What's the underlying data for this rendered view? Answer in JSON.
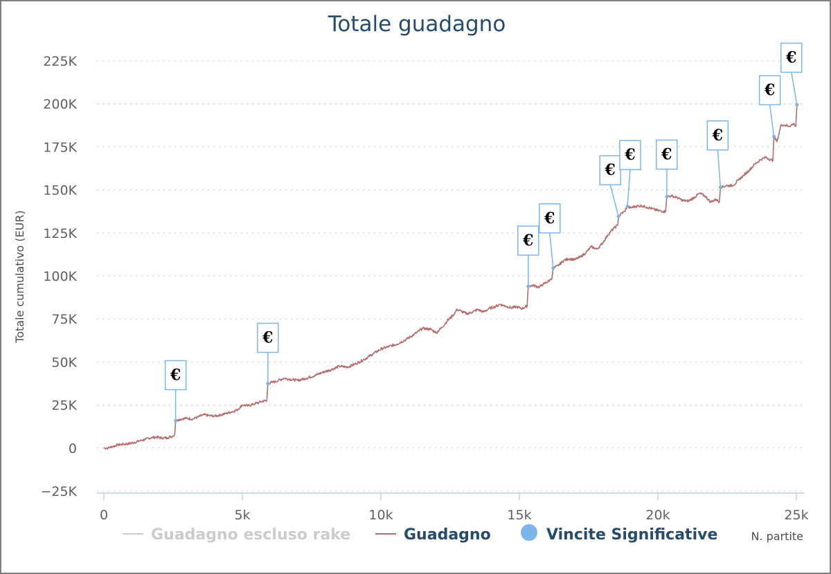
{
  "chart_data": {
    "type": "line",
    "title": "Totale guadagno",
    "ylabel": "Totale cumulativo (EUR)",
    "xlabel": "N. partite",
    "xlim": [
      0,
      25000
    ],
    "ylim": [
      -25000,
      225000
    ],
    "x_ticks": [
      0,
      5000,
      10000,
      15000,
      20000,
      25000
    ],
    "x_tick_labels": [
      "0",
      "5k",
      "10k",
      "15k",
      "20k",
      "25k"
    ],
    "y_ticks": [
      -25000,
      0,
      25000,
      50000,
      75000,
      100000,
      125000,
      150000,
      175000,
      200000,
      225000
    ],
    "y_tick_labels": [
      "−25K",
      "0",
      "25K",
      "50K",
      "75K",
      "100K",
      "125K",
      "150K",
      "175K",
      "200K",
      "225K"
    ],
    "grid": "horizontal-dotted",
    "legend_position": "bottom",
    "series": [
      {
        "name": "Guadagno escluso rake",
        "color": "#cccccc",
        "hidden": true,
        "points": []
      },
      {
        "name": "Guadagno",
        "color": "#b56c6c",
        "points": [
          [
            0,
            0
          ],
          [
            150,
            0
          ],
          [
            300,
            800
          ],
          [
            500,
            1800
          ],
          [
            700,
            2200
          ],
          [
            900,
            2500
          ],
          [
            1100,
            3200
          ],
          [
            1300,
            4200
          ],
          [
            1500,
            5000
          ],
          [
            1700,
            6000
          ],
          [
            1900,
            6300
          ],
          [
            2100,
            5800
          ],
          [
            2300,
            6000
          ],
          [
            2500,
            7000
          ],
          [
            2560,
            8200
          ],
          [
            2590,
            15800
          ],
          [
            2700,
            16500
          ],
          [
            2850,
            17000
          ],
          [
            3000,
            17300
          ],
          [
            3200,
            16800
          ],
          [
            3400,
            18000
          ],
          [
            3600,
            19300
          ],
          [
            3800,
            18800
          ],
          [
            4000,
            18500
          ],
          [
            4200,
            19200
          ],
          [
            4400,
            20000
          ],
          [
            4600,
            21000
          ],
          [
            4800,
            22000
          ],
          [
            5000,
            25000
          ],
          [
            5200,
            24500
          ],
          [
            5400,
            25500
          ],
          [
            5600,
            26500
          ],
          [
            5800,
            27500
          ],
          [
            5880,
            27200
          ],
          [
            5920,
            37500
          ],
          [
            6100,
            38200
          ],
          [
            6300,
            39200
          ],
          [
            6500,
            40500
          ],
          [
            6700,
            40000
          ],
          [
            7000,
            39300
          ],
          [
            7300,
            40500
          ],
          [
            7600,
            42000
          ],
          [
            7900,
            44000
          ],
          [
            8200,
            45500
          ],
          [
            8500,
            47500
          ],
          [
            8800,
            47000
          ],
          [
            9100,
            49000
          ],
          [
            9400,
            51500
          ],
          [
            9700,
            54500
          ],
          [
            10000,
            57500
          ],
          [
            10300,
            59000
          ],
          [
            10600,
            60500
          ],
          [
            10900,
            63000
          ],
          [
            11200,
            66000
          ],
          [
            11500,
            69500
          ],
          [
            11800,
            69000
          ],
          [
            12000,
            67000
          ],
          [
            12200,
            70000
          ],
          [
            12400,
            74000
          ],
          [
            12600,
            77000
          ],
          [
            12750,
            80500
          ],
          [
            12900,
            79500
          ],
          [
            13100,
            78000
          ],
          [
            13300,
            79000
          ],
          [
            13500,
            80500
          ],
          [
            13700,
            79000
          ],
          [
            13900,
            81000
          ],
          [
            14100,
            82000
          ],
          [
            14300,
            83500
          ],
          [
            14500,
            82500
          ],
          [
            14700,
            81500
          ],
          [
            14900,
            82000
          ],
          [
            15100,
            81000
          ],
          [
            15280,
            82500
          ],
          [
            15320,
            94000
          ],
          [
            15500,
            94500
          ],
          [
            15700,
            93500
          ],
          [
            15900,
            95500
          ],
          [
            16100,
            97500
          ],
          [
            16180,
            99000
          ],
          [
            16220,
            104500
          ],
          [
            16400,
            106000
          ],
          [
            16600,
            109000
          ],
          [
            16800,
            110000
          ],
          [
            17000,
            109500
          ],
          [
            17200,
            111000
          ],
          [
            17400,
            113500
          ],
          [
            17600,
            117000
          ],
          [
            17800,
            115500
          ],
          [
            18000,
            119000
          ],
          [
            18200,
            124000
          ],
          [
            18400,
            127500
          ],
          [
            18550,
            129500
          ],
          [
            18580,
            134500
          ],
          [
            18700,
            136500
          ],
          [
            18800,
            137500
          ],
          [
            18900,
            140500
          ],
          [
            19000,
            139500
          ],
          [
            19200,
            140500
          ],
          [
            19400,
            140800
          ],
          [
            19600,
            140000
          ],
          [
            19800,
            139000
          ],
          [
            20000,
            138000
          ],
          [
            20200,
            137500
          ],
          [
            20280,
            137500
          ],
          [
            20320,
            146000
          ],
          [
            20500,
            146500
          ],
          [
            20700,
            145500
          ],
          [
            20900,
            143800
          ],
          [
            21100,
            143500
          ],
          [
            21300,
            145500
          ],
          [
            21500,
            148000
          ],
          [
            21700,
            146500
          ],
          [
            21900,
            143000
          ],
          [
            22100,
            144500
          ],
          [
            22220,
            143000
          ],
          [
            22260,
            151500
          ],
          [
            22500,
            152500
          ],
          [
            22700,
            152500
          ],
          [
            22900,
            155500
          ],
          [
            23100,
            158500
          ],
          [
            23300,
            161500
          ],
          [
            23500,
            165000
          ],
          [
            23700,
            167500
          ],
          [
            23900,
            169000
          ],
          [
            24000,
            168000
          ],
          [
            24150,
            167000
          ],
          [
            24190,
            181000
          ],
          [
            24300,
            178000
          ],
          [
            24450,
            188000
          ],
          [
            24600,
            187500
          ],
          [
            24750,
            187000
          ],
          [
            24900,
            188500
          ],
          [
            24980,
            187000
          ],
          [
            25020,
            199500
          ]
        ]
      }
    ],
    "markers": {
      "name": "Vincite Significative",
      "color": "#7cb5ec",
      "symbol": "€",
      "points": [
        [
          2590,
          15800
        ],
        [
          5920,
          37500
        ],
        [
          15320,
          94000
        ],
        [
          16220,
          104500
        ],
        [
          18580,
          134500
        ],
        [
          18900,
          140500
        ],
        [
          20320,
          146000
        ],
        [
          22260,
          151500
        ],
        [
          24190,
          181000
        ],
        [
          25020,
          199500
        ]
      ]
    }
  }
}
